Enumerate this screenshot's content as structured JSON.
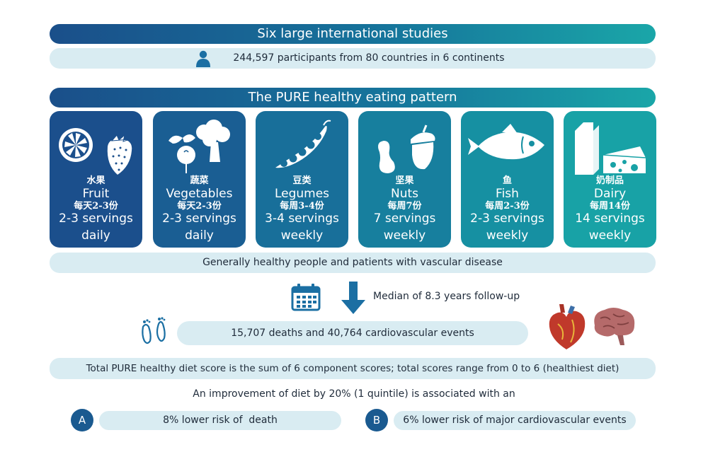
{
  "studies": {
    "title": "Six large international studies",
    "participants": "244,597 participants from 80 countries in 6 continents",
    "participants_icon": "person-icon"
  },
  "pattern": {
    "title": "The PURE healthy eating pattern",
    "foods": [
      {
        "zh": "水果",
        "name": "Fruit",
        "zh_serving": "每天2-3份",
        "servings": "2-3 servings",
        "frequency": "daily",
        "icon": "fruit-icon"
      },
      {
        "zh": "蔬菜",
        "name": "Vegetables",
        "zh_serving": "每天2-3份",
        "servings": "2-3 servings",
        "frequency": "daily",
        "icon": "vegetables-icon"
      },
      {
        "zh": "豆类",
        "name": "Legumes",
        "zh_serving": "每周3-4份",
        "servings": "3-4 servings",
        "frequency": "weekly",
        "icon": "legumes-icon"
      },
      {
        "zh": "坚果",
        "name": "Nuts",
        "zh_serving": "每周7份",
        "servings": "7 servings",
        "frequency": "weekly",
        "icon": "nuts-icon"
      },
      {
        "zh": "鱼",
        "name": "Fish",
        "zh_serving": "每周2-3份",
        "servings": "2-3 servings",
        "frequency": "weekly",
        "icon": "fish-icon"
      },
      {
        "zh": "奶制品",
        "name": "Dairy",
        "zh_serving": "每周14份",
        "servings": "14 servings",
        "frequency": "weekly",
        "icon": "dairy-icon"
      }
    ],
    "card_colors": [
      "#1b4f8c",
      "#1a5e93",
      "#186f9a",
      "#177f9e",
      "#1690a2",
      "#18a2a6"
    ]
  },
  "population": "Generally healthy people and patients with vascular disease",
  "followup": {
    "text": "Median of 8.3 years follow-up",
    "icons": [
      "calendar-icon",
      "down-arrow-icon"
    ]
  },
  "events": {
    "text": "15,707 deaths and 40,764 cardiovascular events",
    "icons": [
      "footprints-icon",
      "heart-icon",
      "brain-icon"
    ]
  },
  "score": "Total PURE healthy diet score is the sum of 6 component scores; total scores range from 0 to 6 (healthiest diet)",
  "improvement": "An improvement of diet by 20% (1 quintile) is associated with an",
  "outcomes": [
    {
      "badge": "A",
      "text": "8% lower risk of  death"
    },
    {
      "badge": "B",
      "text": "6% lower risk of major cardiovascular events"
    }
  ],
  "colors": {
    "accent_dark": "#1a4f8a",
    "accent_teal": "#1aa6a8",
    "pill": "#d9ecf2",
    "icon_blue": "#1b6fa3"
  }
}
